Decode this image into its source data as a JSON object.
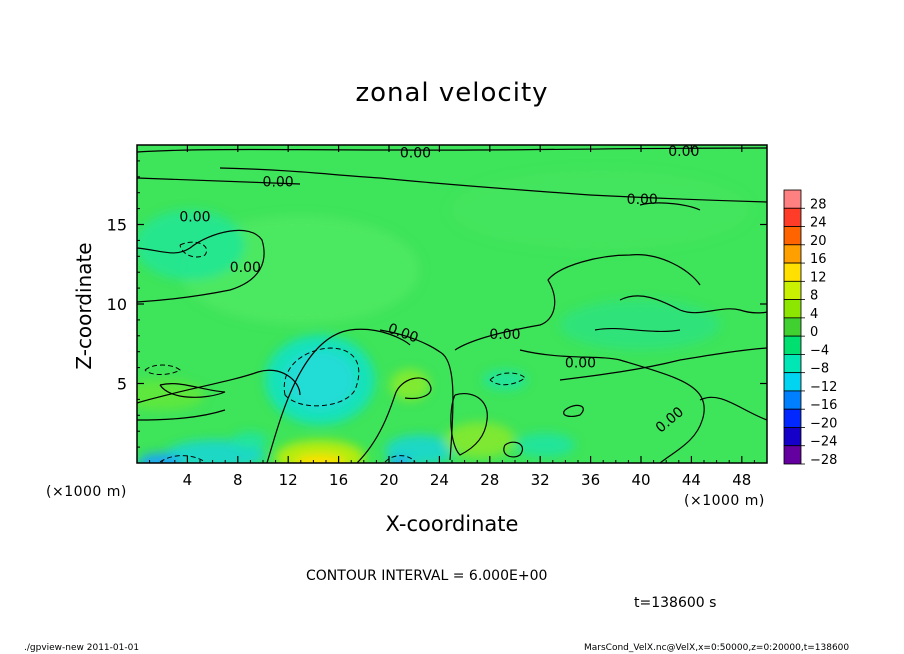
{
  "chart_data": {
    "type": "heatmap",
    "title": "zonal velocity",
    "xlabel": "X-coordinate",
    "ylabel": "Z-coordinate",
    "x_unit_label": "(×1000 m)",
    "xlim": [
      0,
      50
    ],
    "ylim": [
      0,
      20
    ],
    "x_ticks": [
      4,
      8,
      12,
      16,
      20,
      24,
      28,
      32,
      36,
      40,
      44,
      48
    ],
    "y_ticks": [
      5,
      10,
      15
    ],
    "colorbar": {
      "labels": [
        "28",
        "24",
        "20",
        "16",
        "12",
        "8",
        "4",
        "0",
        "−4",
        "−8",
        "−12",
        "−16",
        "−20",
        "−24",
        "−28"
      ],
      "colors": [
        "#ff8080",
        "#ff3c28",
        "#ff6400",
        "#ffa000",
        "#ffe000",
        "#c8f000",
        "#8ce600",
        "#40d030",
        "#00e070",
        "#00e6b4",
        "#00d4f0",
        "#0080ff",
        "#0028ff",
        "#1400c8",
        "#6400a0"
      ]
    },
    "contour_labels": [
      "0.00",
      "0.00",
      "0.00",
      "0.00",
      "0.00",
      "0.00",
      "0.00",
      "0.00",
      "0.00",
      "0.00"
    ],
    "contour_interval_text": "CONTOUR INTERVAL = 6.000E+00",
    "time_text": "t=138600 s"
  },
  "footer": {
    "left": "./gpview-new  2011-01-01",
    "right": "MarsCond_VelX.nc@VelX,x=0:50000,z=0:20000,t=138600"
  }
}
